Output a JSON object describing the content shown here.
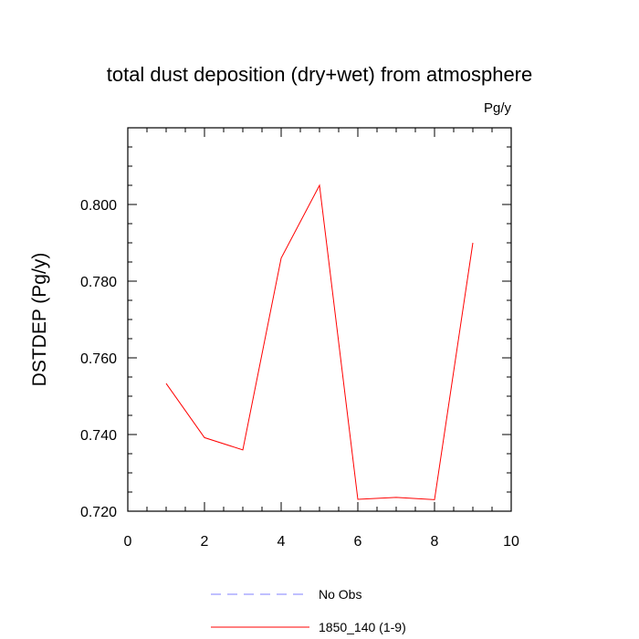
{
  "chart_data": {
    "type": "line",
    "title": "total dust deposition (dry+wet) from atmosphere",
    "units_label": "Pg/y",
    "ylabel": "DSTDEP  (Pg/y)",
    "xlabel": "",
    "xlim": [
      0,
      10
    ],
    "ylim": [
      0.72,
      0.82
    ],
    "x_major_ticks": [
      0,
      2,
      4,
      6,
      8,
      10
    ],
    "x_tick_labels": [
      "0",
      "2",
      "4",
      "6",
      "8",
      "10"
    ],
    "y_major_ticks": [
      0.72,
      0.74,
      0.76,
      0.78,
      0.8
    ],
    "y_tick_labels": [
      "0.720",
      "0.740",
      "0.760",
      "0.780",
      "0.800"
    ],
    "grid": false,
    "legend_position": "bottom",
    "series": [
      {
        "name": "No Obs",
        "color": "#8080ff",
        "dash": "dashed",
        "x": [],
        "y": []
      },
      {
        "name": "1850_140 (1-9)",
        "color": "#ff0000",
        "dash": "solid",
        "x": [
          1,
          2,
          3,
          4,
          5,
          6,
          7,
          8,
          9
        ],
        "y": [
          0.7533,
          0.7392,
          0.736,
          0.786,
          0.805,
          0.7231,
          0.7236,
          0.723,
          0.79
        ]
      }
    ]
  }
}
